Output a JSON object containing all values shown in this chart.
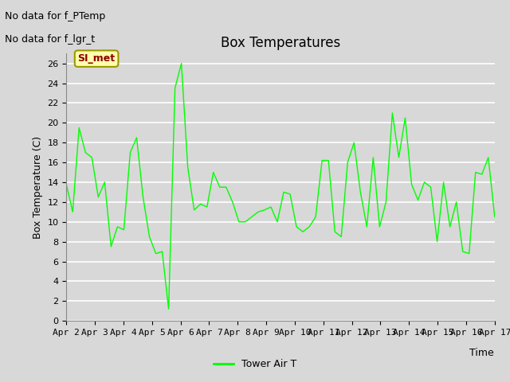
{
  "title": "Box Temperatures",
  "xlabel": "Time",
  "ylabel": "Box Temperature (C)",
  "text_no_data_1": "No data for f_PTemp",
  "text_no_data_2": "No data for f_lgr_t",
  "annotation_label": "SI_met",
  "legend_label": "Tower Air T",
  "line_color": "#00FF00",
  "background_color": "#D8D8D8",
  "plot_bg_color": "#D8D8D8",
  "ylim": [
    0,
    27
  ],
  "yticks": [
    0,
    2,
    4,
    6,
    8,
    10,
    12,
    14,
    16,
    18,
    20,
    22,
    24,
    26
  ],
  "x_labels": [
    "Apr 2",
    "Apr 3",
    "Apr 4",
    "Apr 5",
    "Apr 6",
    "Apr 7",
    "Apr 8",
    "Apr 9",
    "Apr 10",
    "Apr 11",
    "Apr 12",
    "Apr 13",
    "Apr 14",
    "Apr 15",
    "Apr 16",
    "Apr 17"
  ],
  "x_values": [
    2,
    3,
    4,
    5,
    6,
    7,
    8,
    9,
    10,
    11,
    12,
    13,
    14,
    15,
    16,
    17
  ],
  "y_values": [
    13.8,
    11.0,
    19.5,
    17.0,
    16.5,
    12.5,
    14.0,
    7.5,
    9.5,
    9.2,
    17.0,
    18.5,
    12.5,
    8.5,
    6.8,
    7.0,
    1.2,
    23.5,
    26.0,
    15.5,
    11.2,
    11.8,
    11.5,
    15.0,
    13.5,
    13.5,
    12.0,
    10.0,
    10.0,
    10.5,
    11.0,
    11.2,
    11.5,
    10.0,
    13.0,
    12.8,
    9.5,
    9.0,
    9.5,
    10.5,
    16.2,
    16.2,
    9.0,
    8.5,
    16.0,
    18.0,
    13.0,
    9.5,
    16.5,
    9.5,
    12.0,
    21.0,
    16.5,
    20.5,
    13.8,
    12.2,
    14.0,
    13.5,
    8.0,
    14.0,
    9.5,
    12.0,
    7.0,
    6.8,
    15.0,
    14.8,
    16.5,
    10.5
  ],
  "annotation_bg": "#FFFFAA",
  "annotation_fg": "#8B0000",
  "annotation_border": "#999900",
  "title_fontsize": 12,
  "axis_fontsize": 9,
  "tick_fontsize": 8,
  "legend_fontsize": 9,
  "nodata_fontsize": 9
}
